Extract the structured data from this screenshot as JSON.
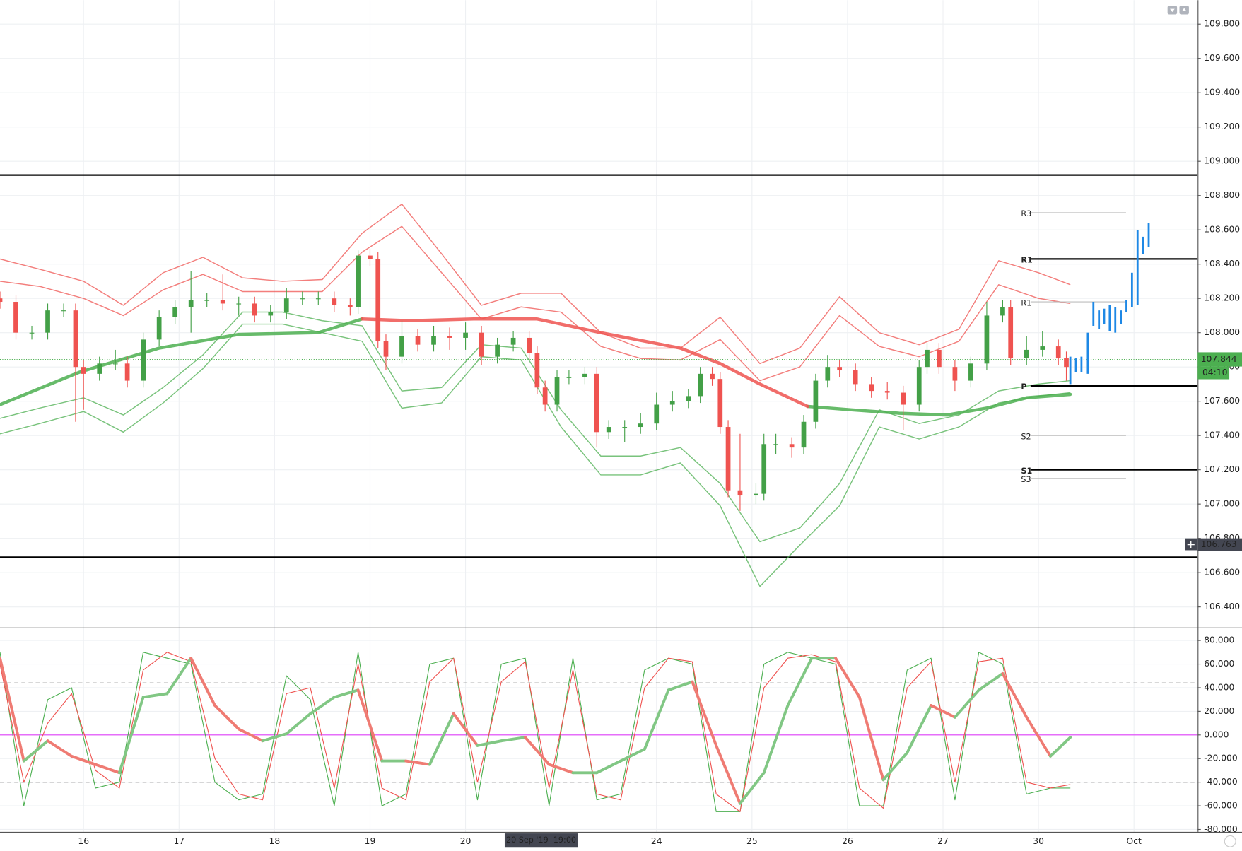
{
  "chart_data": {
    "type": "candlestick",
    "xlim": [
      -21,
      280
    ],
    "xticks": [
      {
        "value": 0,
        "label": "16"
      },
      {
        "value": 24,
        "label": "17"
      },
      {
        "value": 48,
        "label": "18"
      },
      {
        "value": 72,
        "label": "19"
      },
      {
        "value": 96,
        "label": "20"
      },
      {
        "value": 144,
        "label": "24"
      },
      {
        "value": 168,
        "label": "25"
      },
      {
        "value": 192,
        "label": "26"
      },
      {
        "value": 216,
        "label": "27"
      },
      {
        "value": 240,
        "label": "30"
      },
      {
        "value": 264,
        "label": "Oct"
      }
    ],
    "ylim": [
      106.28,
      109.94
    ],
    "yticks": [
      {
        "value": 106.4,
        "label": "106.400"
      },
      {
        "value": 106.6,
        "label": "106.600"
      },
      {
        "value": 106.8,
        "label": "106.800"
      },
      {
        "value": 107.0,
        "label": "107.000"
      },
      {
        "value": 107.2,
        "label": "107.200"
      },
      {
        "value": 107.4,
        "label": "107.400"
      },
      {
        "value": 107.6,
        "label": "107.600"
      },
      {
        "value": 107.8,
        "label": "107.800"
      },
      {
        "value": 108.0,
        "label": "108.000"
      },
      {
        "value": 108.2,
        "label": "108.200"
      },
      {
        "value": 108.4,
        "label": "108.400"
      },
      {
        "value": 108.6,
        "label": "108.600"
      },
      {
        "value": 108.8,
        "label": "108.800"
      },
      {
        "value": 109.0,
        "label": "109.000"
      },
      {
        "value": 109.2,
        "label": "109.200"
      },
      {
        "value": 109.4,
        "label": "109.400"
      },
      {
        "value": 109.6,
        "label": "109.600"
      },
      {
        "value": 109.8,
        "label": "109.800"
      }
    ],
    "grid": true,
    "candles": {
      "up_color": "#43a047",
      "down_color": "#ef5350",
      "x": [
        -21,
        -17,
        -13,
        -9,
        -5,
        -2,
        0,
        4,
        8,
        11,
        15,
        19,
        23,
        27,
        31,
        35,
        39,
        43,
        47,
        51,
        55,
        59,
        63,
        67,
        69,
        72,
        74,
        76,
        80,
        84,
        88,
        92,
        96,
        100,
        104,
        108,
        112,
        114,
        116,
        119,
        122,
        126,
        129,
        132,
        136,
        140,
        144,
        148,
        152,
        155,
        158,
        160,
        162,
        165,
        169,
        171,
        174,
        178,
        181,
        184,
        187,
        190,
        194,
        198,
        202,
        206,
        210,
        212,
        215,
        219,
        223,
        227,
        231,
        233,
        237,
        241,
        245,
        247
      ],
      "open": [
        108.2,
        108.18,
        108.0,
        108.0,
        108.13,
        108.13,
        107.8,
        107.76,
        107.82,
        107.82,
        107.72,
        107.96,
        108.09,
        108.15,
        108.19,
        108.19,
        108.17,
        108.17,
        108.1,
        108.12,
        108.2,
        108.2,
        108.2,
        108.16,
        108.15,
        108.45,
        108.43,
        107.95,
        107.86,
        107.98,
        107.93,
        107.98,
        107.97,
        108.0,
        107.86,
        107.93,
        107.97,
        107.88,
        107.68,
        107.58,
        107.74,
        107.74,
        107.76,
        107.42,
        107.45,
        107.45,
        107.47,
        107.58,
        107.6,
        107.63,
        107.76,
        107.73,
        107.45,
        107.08,
        107.05,
        107.06,
        107.35,
        107.35,
        107.33,
        107.48,
        107.72,
        107.8,
        107.78,
        107.7,
        107.66,
        107.65,
        107.58,
        107.8,
        107.9,
        107.8,
        107.72,
        107.82,
        108.1,
        108.15,
        107.85,
        107.9,
        107.92,
        107.85
      ],
      "high": [
        108.24,
        108.22,
        108.04,
        108.17,
        108.17,
        108.17,
        107.84,
        107.86,
        107.9,
        107.86,
        108.0,
        108.13,
        108.19,
        108.36,
        108.23,
        108.34,
        108.21,
        108.21,
        108.16,
        108.26,
        108.24,
        108.24,
        108.24,
        108.2,
        108.48,
        108.49,
        108.47,
        107.99,
        108.07,
        108.02,
        108.04,
        108.03,
        108.06,
        108.04,
        107.97,
        108.01,
        108.01,
        107.92,
        107.72,
        107.78,
        107.78,
        107.8,
        107.8,
        107.49,
        107.49,
        107.53,
        107.65,
        107.66,
        107.67,
        107.8,
        107.8,
        107.77,
        107.49,
        107.41,
        107.12,
        107.41,
        107.41,
        107.39,
        107.52,
        107.76,
        107.87,
        107.84,
        107.82,
        107.74,
        107.71,
        107.69,
        107.84,
        107.94,
        107.94,
        107.84,
        107.86,
        108.18,
        108.19,
        108.19,
        107.98,
        108.01,
        107.96,
        107.89
      ],
      "low": [
        108.14,
        107.96,
        107.96,
        107.96,
        108.09,
        107.48,
        107.55,
        107.72,
        107.78,
        107.68,
        107.68,
        107.92,
        108.05,
        108.0,
        108.15,
        108.13,
        108.1,
        108.06,
        108.06,
        108.08,
        108.16,
        108.16,
        108.12,
        108.1,
        108.11,
        108.39,
        107.91,
        107.78,
        107.82,
        107.89,
        107.89,
        107.9,
        107.9,
        107.81,
        107.82,
        107.89,
        107.84,
        107.64,
        107.54,
        107.54,
        107.7,
        107.7,
        107.33,
        107.38,
        107.36,
        107.41,
        107.43,
        107.54,
        107.56,
        107.59,
        107.69,
        107.41,
        107.04,
        106.96,
        107.0,
        107.02,
        107.29,
        107.27,
        107.29,
        107.44,
        107.68,
        107.74,
        107.66,
        107.62,
        107.61,
        107.43,
        107.54,
        107.76,
        107.76,
        107.66,
        107.68,
        107.78,
        108.06,
        107.81,
        107.81,
        107.86,
        107.81,
        107.72
      ],
      "close": [
        108.18,
        108.0,
        108.0,
        108.13,
        108.13,
        107.8,
        107.76,
        107.82,
        107.82,
        107.72,
        107.96,
        108.09,
        108.15,
        108.19,
        108.19,
        108.17,
        108.17,
        108.1,
        108.12,
        108.2,
        108.2,
        108.2,
        108.16,
        108.15,
        108.45,
        108.43,
        107.95,
        107.86,
        107.98,
        107.93,
        107.98,
        107.97,
        108.0,
        107.86,
        107.93,
        107.97,
        107.88,
        107.68,
        107.58,
        107.74,
        107.74,
        107.76,
        107.42,
        107.45,
        107.45,
        107.47,
        107.58,
        107.6,
        107.63,
        107.76,
        107.73,
        107.45,
        107.08,
        107.05,
        107.06,
        107.35,
        107.35,
        107.33,
        107.48,
        107.72,
        107.8,
        107.78,
        107.7,
        107.66,
        107.65,
        107.58,
        107.8,
        107.9,
        107.8,
        107.72,
        107.82,
        108.1,
        108.15,
        107.85,
        107.9,
        107.92,
        107.85,
        107.8
      ]
    },
    "bands": {
      "x": [
        -21,
        -11,
        0,
        10,
        20,
        30,
        40,
        50,
        60,
        70,
        80,
        90,
        100,
        110,
        120,
        130,
        140,
        150,
        160,
        170,
        180,
        190,
        200,
        210,
        220,
        230,
        240,
        248
      ],
      "series": [
        {
          "color": "#ef5350",
          "values": [
            108.43,
            108.37,
            108.3,
            108.16,
            108.35,
            108.44,
            108.32,
            108.3,
            108.31,
            108.58,
            108.75,
            108.46,
            108.16,
            108.23,
            108.23,
            108.0,
            107.91,
            107.91,
            108.09,
            107.82,
            107.91,
            108.21,
            108.0,
            107.93,
            108.02,
            108.42,
            108.35,
            108.28
          ]
        },
        {
          "color": "#ef5350",
          "values": [
            108.3,
            108.27,
            108.2,
            108.1,
            108.25,
            108.34,
            108.24,
            108.24,
            108.24,
            108.47,
            108.62,
            108.35,
            108.08,
            108.15,
            108.12,
            107.92,
            107.85,
            107.84,
            107.96,
            107.72,
            107.8,
            108.1,
            107.92,
            107.86,
            107.95,
            108.28,
            108.2,
            108.17
          ]
        },
        {
          "color": "#4caf50",
          "values": [
            107.5,
            107.56,
            107.62,
            107.52,
            107.68,
            107.87,
            108.12,
            108.12,
            108.07,
            108.04,
            107.66,
            107.68,
            107.93,
            107.91,
            107.55,
            107.28,
            107.28,
            107.33,
            107.12,
            106.78,
            106.86,
            107.12,
            107.55,
            107.47,
            107.52,
            107.66,
            107.7,
            107.72
          ]
        },
        {
          "color": "#4caf50",
          "values": [
            107.41,
            107.47,
            107.54,
            107.42,
            107.59,
            107.79,
            108.05,
            108.05,
            108.0,
            107.95,
            107.56,
            107.59,
            107.86,
            107.84,
            107.45,
            107.17,
            107.17,
            107.24,
            106.99,
            106.52,
            106.76,
            106.99,
            107.45,
            107.38,
            107.45,
            107.59,
            107.63,
            107.65
          ]
        }
      ]
    },
    "moving_average": {
      "x": [
        -21,
        -1,
        19,
        39,
        59,
        70,
        82,
        98,
        114,
        130,
        150,
        160,
        170,
        182,
        193,
        205,
        217,
        227,
        237,
        248
      ],
      "series": [
        {
          "color": "#4caf50",
          "values": [
            107.58,
            107.77,
            107.91,
            107.99,
            108.0,
            108.08,
            null,
            null,
            null,
            null,
            null,
            null,
            null,
            107.57,
            107.55,
            107.53,
            107.52,
            107.56,
            107.62,
            107.64
          ]
        },
        {
          "color": "#ef5350",
          "values": [
            null,
            null,
            null,
            null,
            null,
            108.08,
            108.07,
            108.08,
            108.08,
            108.0,
            107.91,
            107.82,
            107.7,
            107.57,
            null,
            null,
            null,
            null,
            null,
            null
          ]
        }
      ]
    },
    "levels": [
      {
        "value": 108.92,
        "color": "#000000"
      },
      {
        "value": 106.69,
        "color": "#000000"
      }
    ],
    "pivots": [
      {
        "label": "R3",
        "value": 108.7,
        "color": "#bdbdbd"
      },
      {
        "label": "R1",
        "value": 108.43,
        "color": "#000000"
      },
      {
        "label": "R1",
        "value": 108.18,
        "color": "#bdbdbd"
      },
      {
        "label": "P",
        "value": 107.69,
        "color": "#000000"
      },
      {
        "label": "S2",
        "value": 107.4,
        "color": "#bdbdbd"
      },
      {
        "label": "S1",
        "value": 107.2,
        "color": "#000000"
      },
      {
        "label": "S3",
        "value": 107.15,
        "color": "#bdbdbd"
      }
    ],
    "projection": {
      "color": "#1e88e5",
      "x": [
        248.0,
        249.4,
        250.8,
        252.4,
        253.8,
        255.2,
        256.5,
        257.9,
        259.3,
        260.7,
        262.1,
        263.5,
        264.9,
        266.3,
        267.7
      ],
      "high": [
        107.86,
        107.85,
        107.86,
        108.0,
        108.18,
        108.13,
        108.14,
        108.16,
        108.15,
        108.13,
        108.19,
        108.35,
        108.6,
        108.56,
        108.64
      ],
      "low": [
        107.7,
        107.77,
        107.77,
        107.76,
        108.04,
        108.02,
        108.05,
        108.01,
        108.0,
        108.05,
        108.12,
        108.15,
        108.16,
        108.46,
        108.5
      ]
    },
    "last_price": {
      "value": 107.844,
      "time": "04:10",
      "color": "#4caf50"
    },
    "crosshair": {
      "x": 115,
      "x_label": "20 Sep '19  19:00",
      "y": 106.763
    },
    "oscillator": {
      "ylim": [
        -82,
        91
      ],
      "yticks": [
        {
          "value": -80,
          "label": "-80.000"
        },
        {
          "value": -60,
          "label": "-60.000"
        },
        {
          "value": -40,
          "label": "-40.000"
        },
        {
          "value": -20,
          "label": "-20.000"
        },
        {
          "value": 0,
          "label": "0.000"
        },
        {
          "value": 20,
          "label": "20.000"
        },
        {
          "value": 40,
          "label": "40.000"
        },
        {
          "value": 60,
          "label": "60.000"
        },
        {
          "value": 80,
          "label": "80.000"
        }
      ],
      "levels": [
        {
          "value": 44,
          "color": "#666666"
        },
        {
          "value": 0,
          "color": "#e040fb"
        },
        {
          "value": -40,
          "color": "#666666"
        }
      ],
      "x": [
        -21,
        -15,
        -9,
        -3,
        3,
        9,
        15,
        21,
        27,
        33,
        39,
        45,
        51,
        57,
        63,
        69,
        75,
        81,
        87,
        93,
        99,
        105,
        111,
        117,
        123,
        129,
        135,
        141,
        147,
        153,
        159,
        165,
        171,
        177,
        183,
        189,
        195,
        201,
        207,
        213,
        219,
        225,
        231,
        237,
        243,
        248
      ],
      "main": {
        "up_color": "#81c784",
        "down_color": "#ef7b73",
        "values": [
          65,
          -22,
          -5,
          -18,
          -25,
          -32,
          32,
          35,
          65,
          25,
          5,
          -5,
          1,
          18,
          32,
          38,
          -22,
          -22,
          -25,
          18,
          -9,
          -5,
          -2,
          -25,
          -32,
          -32,
          -22,
          -12,
          38,
          45,
          -9,
          -58,
          -32,
          25,
          65,
          65,
          32,
          -38,
          -15,
          25,
          15,
          38,
          52,
          15,
          -18,
          -2
        ]
      },
      "k": {
        "color": "#4caf50",
        "values": [
          70,
          -60,
          30,
          40,
          -45,
          -40,
          70,
          65,
          60,
          -40,
          -55,
          -50,
          50,
          30,
          -60,
          70,
          -60,
          -50,
          60,
          65,
          -55,
          60,
          65,
          -60,
          65,
          -55,
          -50,
          55,
          65,
          60,
          -65,
          -65,
          60,
          70,
          65,
          60,
          -60,
          -60,
          55,
          65,
          -55,
          70,
          60,
          -50,
          -45,
          -45
        ]
      },
      "d": {
        "color": "#ef5350",
        "values": [
          60,
          -40,
          10,
          35,
          -30,
          -45,
          55,
          70,
          62,
          -20,
          -50,
          -55,
          35,
          40,
          -45,
          60,
          -45,
          -55,
          45,
          65,
          -40,
          45,
          62,
          -45,
          55,
          -50,
          -55,
          40,
          65,
          62,
          -50,
          -65,
          40,
          65,
          68,
          62,
          -45,
          -62,
          40,
          62,
          -40,
          62,
          65,
          -40,
          -45,
          -42
        ]
      }
    }
  }
}
